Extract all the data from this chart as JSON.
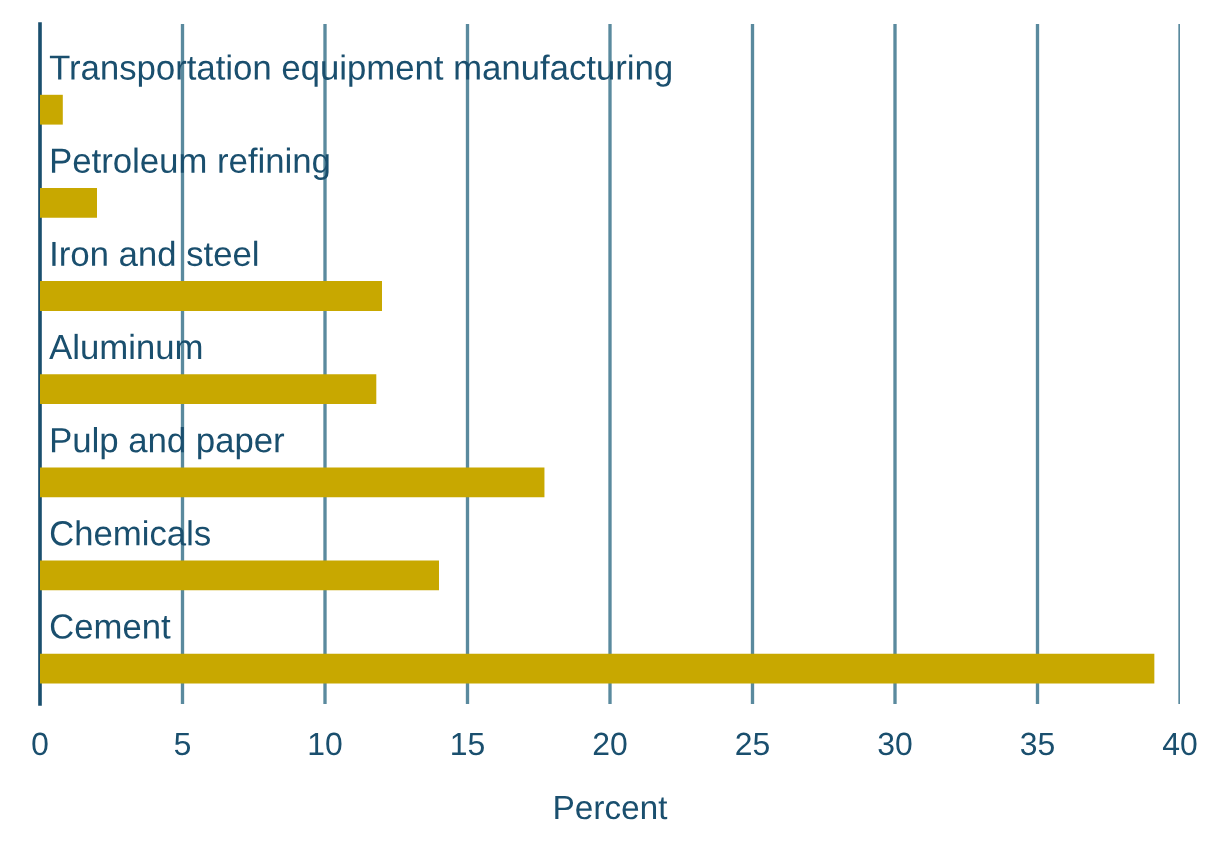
{
  "chart_data": {
    "type": "bar",
    "orientation": "horizontal",
    "xlabel": "Percent",
    "categories": [
      "Transportation equipment manufacturing",
      "Petroleum refining",
      "Iron and steel",
      "Aluminum",
      "Pulp and paper",
      "Chemicals",
      "Cement"
    ],
    "values": [
      0.8,
      2.0,
      12.0,
      11.8,
      17.7,
      14.0,
      39.1
    ],
    "color": "#c8a800",
    "xlim": [
      0,
      40
    ],
    "xticks": [
      0,
      5,
      10,
      15,
      20,
      25,
      30,
      35,
      40
    ],
    "grid": "x"
  }
}
